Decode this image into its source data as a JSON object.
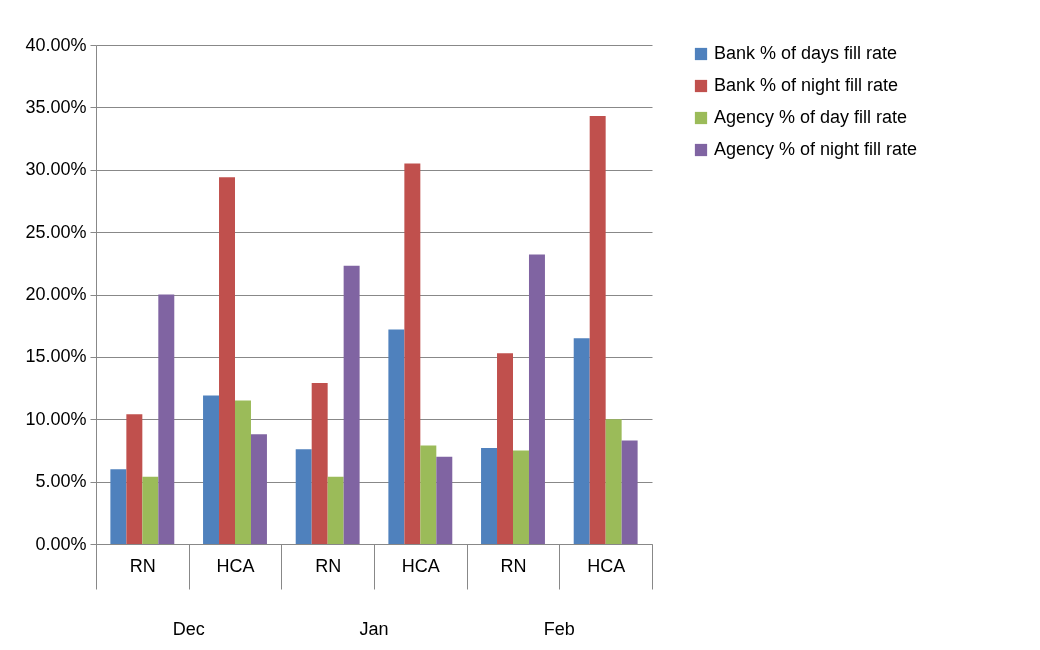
{
  "chart_data": {
    "type": "bar",
    "categories": [
      "RN",
      "HCA",
      "RN",
      "HCA",
      "RN",
      "HCA"
    ],
    "annotations": [
      "Dec",
      "Jan",
      "Feb"
    ],
    "series": [
      {
        "name": "Bank % of days fill rate",
        "color": "#4f81bd",
        "values": [
          6.0,
          11.9,
          7.6,
          17.2,
          7.7,
          16.5
        ]
      },
      {
        "name": "Bank % of night fill rate",
        "color": "#c0504d",
        "values": [
          10.4,
          29.4,
          12.9,
          30.5,
          15.3,
          34.3
        ]
      },
      {
        "name": "Agency % of day fill rate",
        "color": "#9bbb59",
        "values": [
          5.4,
          11.5,
          5.4,
          7.9,
          7.5,
          10.0
        ]
      },
      {
        "name": "Agency % of night fill rate",
        "color": "#8064a2",
        "values": [
          20.0,
          8.8,
          22.3,
          7.0,
          23.2,
          8.3
        ]
      }
    ],
    "ylim": [
      0,
      40
    ],
    "yticks": [
      {
        "value": 0,
        "label": "0.00%"
      },
      {
        "value": 5,
        "label": "5.00%"
      },
      {
        "value": 10,
        "label": "10.00%"
      },
      {
        "value": 15,
        "label": "15.00%"
      },
      {
        "value": 20,
        "label": "20.00%"
      },
      {
        "value": 25,
        "label": "25.00%"
      },
      {
        "value": 30,
        "label": "30.00%"
      },
      {
        "value": 35,
        "label": "35.00%"
      },
      {
        "value": 40,
        "label": "40.00%"
      }
    ],
    "grid": "y",
    "legend": "right"
  }
}
